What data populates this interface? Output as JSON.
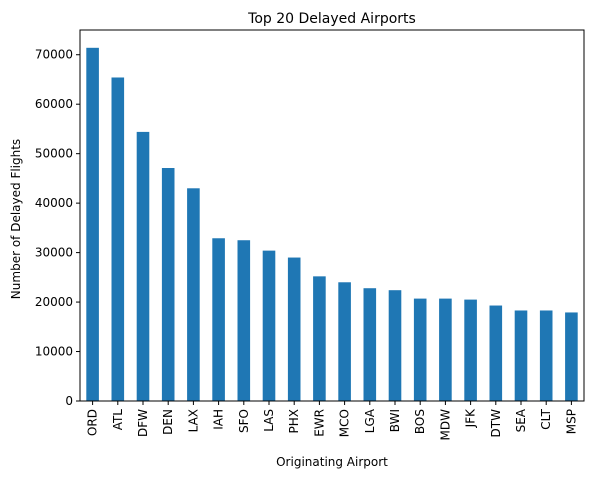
{
  "chart_data": {
    "type": "bar",
    "title": "Top 20 Delayed Airports",
    "xlabel": "Originating Airport",
    "ylabel": "Number of Delayed Flights",
    "categories": [
      "ORD",
      "ATL",
      "DFW",
      "DEN",
      "LAX",
      "IAH",
      "SFO",
      "LAS",
      "PHX",
      "EWR",
      "MCO",
      "LGA",
      "BWI",
      "BOS",
      "MDW",
      "JFK",
      "DTW",
      "SEA",
      "CLT",
      "MSP"
    ],
    "values": [
      71400,
      65400,
      54400,
      47100,
      43000,
      32900,
      32500,
      30400,
      29000,
      25200,
      24000,
      22800,
      22400,
      20700,
      20700,
      20500,
      19300,
      18300,
      18300,
      17900
    ],
    "ylim": [
      0,
      75000
    ],
    "yticks": [
      0,
      10000,
      20000,
      30000,
      40000,
      50000,
      60000,
      70000
    ],
    "grid": false,
    "colors": {
      "bar": "#1f77b4",
      "axis": "#000000"
    }
  }
}
